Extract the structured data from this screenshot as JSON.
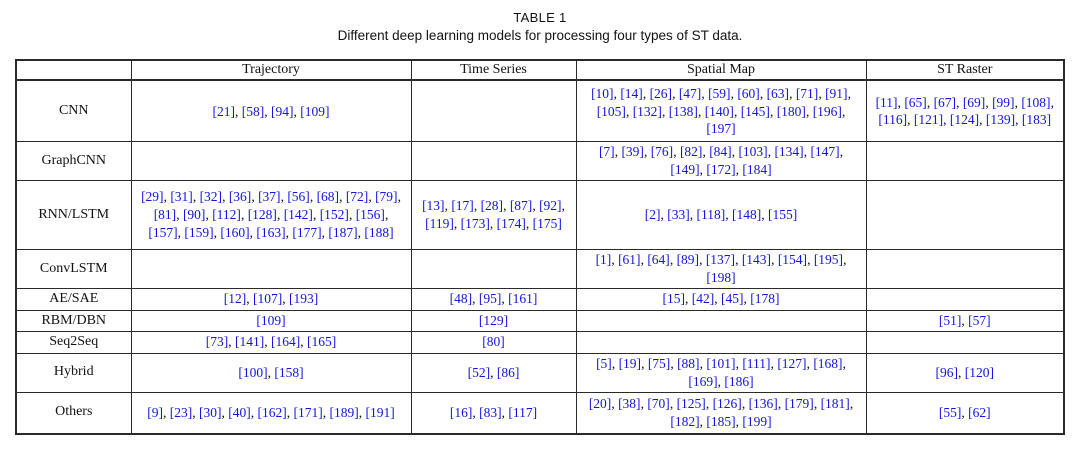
{
  "title": "TABLE 1",
  "caption": "Different deep learning models for processing four types of ST data.",
  "accent_color": "#1414DC",
  "table": {
    "columns": [
      "",
      "Trajectory",
      "Time Series",
      "Spatial Map",
      "ST Raster"
    ],
    "rows": [
      {
        "label": "CNN",
        "cells": [
          [
            "21",
            "58",
            "94",
            "109"
          ],
          [],
          [
            "10",
            "14",
            "26",
            "47",
            "59",
            "60",
            "63",
            "71",
            "91",
            "105",
            "132",
            "138",
            "140",
            "145",
            "180",
            "196",
            "197"
          ],
          [
            "11",
            "65",
            "67",
            "69",
            "99",
            "108",
            "116",
            "121",
            "124",
            "139",
            "183"
          ]
        ]
      },
      {
        "label": "GraphCNN",
        "cells": [
          [],
          [],
          [
            "7",
            "39",
            "76",
            "82",
            "84",
            "103",
            "134",
            "147",
            "149",
            "172",
            "184"
          ],
          []
        ]
      },
      {
        "label": "RNN/LSTM",
        "cells": [
          [
            "29",
            "31",
            "32",
            "36",
            "37",
            "56",
            "68",
            "72",
            "79",
            "81",
            "90",
            "112",
            "128",
            "142",
            "152",
            "156",
            "157",
            "159",
            "160",
            "163",
            "177",
            "187",
            "188"
          ],
          [
            "13",
            "17",
            "28",
            "87",
            "92",
            "119",
            "173",
            "174",
            "175"
          ],
          [
            "2",
            "33",
            "118",
            "148",
            "155"
          ],
          []
        ]
      },
      {
        "label": "ConvLSTM",
        "cells": [
          [],
          [],
          [
            "1",
            "61",
            "64",
            "89",
            "137",
            "143",
            "154",
            "195",
            "198"
          ],
          []
        ]
      },
      {
        "label": "AE/SAE",
        "cells": [
          [
            "12",
            "107",
            "193"
          ],
          [
            "48",
            "95",
            "161"
          ],
          [
            "15",
            "42",
            "45",
            "178"
          ],
          []
        ]
      },
      {
        "label": "RBM/DBN",
        "cells": [
          [
            "109"
          ],
          [
            "129"
          ],
          [],
          [
            "51",
            "57"
          ]
        ]
      },
      {
        "label": "Seq2Seq",
        "cells": [
          [
            "73",
            "141",
            "164",
            "165"
          ],
          [
            "80"
          ],
          [],
          []
        ]
      },
      {
        "label": "Hybrid",
        "cells": [
          [
            "100",
            "158"
          ],
          [
            "52",
            "86"
          ],
          [
            "5",
            "19",
            "75",
            "88",
            "101",
            "111",
            "127",
            "168",
            "169",
            "186"
          ],
          [
            "96",
            "120"
          ]
        ]
      },
      {
        "label": "Others",
        "cells": [
          [
            "9",
            "23",
            "30",
            "40",
            "162",
            "171",
            "189",
            "191"
          ],
          [
            "16",
            "83",
            "117"
          ],
          [
            "20",
            "38",
            "70",
            "125",
            "126",
            "136",
            "179",
            "181",
            "182",
            "185",
            "199"
          ],
          [
            "55",
            "62"
          ]
        ]
      }
    ]
  }
}
